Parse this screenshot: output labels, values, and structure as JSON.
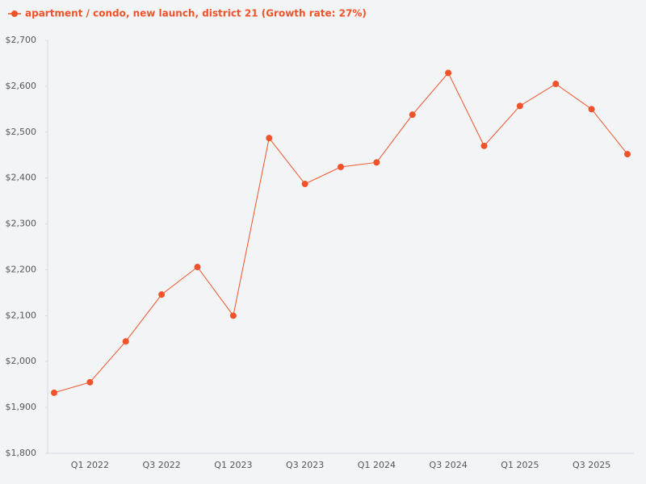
{
  "chart_data": {
    "type": "line",
    "categories": [
      null,
      "Q1 2022",
      null,
      "Q3 2022",
      null,
      "Q1 2023",
      null,
      "Q3 2023",
      null,
      "Q1 2024",
      null,
      "Q3 2024",
      null,
      "Q1 2025",
      null,
      "Q3 2025",
      null
    ],
    "series": [
      {
        "name": "apartment / condo, new launch, district 21 (Growth rate: 27%)",
        "color": "#f0532a",
        "values": [
          1932,
          1955,
          2044,
          2146,
          2206,
          2100,
          2487,
          2387,
          2424,
          2434,
          2538,
          2629,
          2470,
          2557,
          2605,
          2550,
          2452
        ]
      }
    ],
    "ylim": [
      1800,
      2700
    ],
    "yticks": [
      {
        "value": 1800,
        "label": "$1,800"
      },
      {
        "value": 1900,
        "label": "$1,900"
      },
      {
        "value": 2000,
        "label": "$2,000"
      },
      {
        "value": 2100,
        "label": "$2,100"
      },
      {
        "value": 2200,
        "label": "$2,200"
      },
      {
        "value": 2300,
        "label": "$2,300"
      },
      {
        "value": 2400,
        "label": "$2,400"
      },
      {
        "value": 2500,
        "label": "$2,500"
      },
      {
        "value": 2600,
        "label": "$2,600"
      },
      {
        "value": 2700,
        "label": "$2,700"
      }
    ],
    "grid": false,
    "legend": "top-left"
  }
}
